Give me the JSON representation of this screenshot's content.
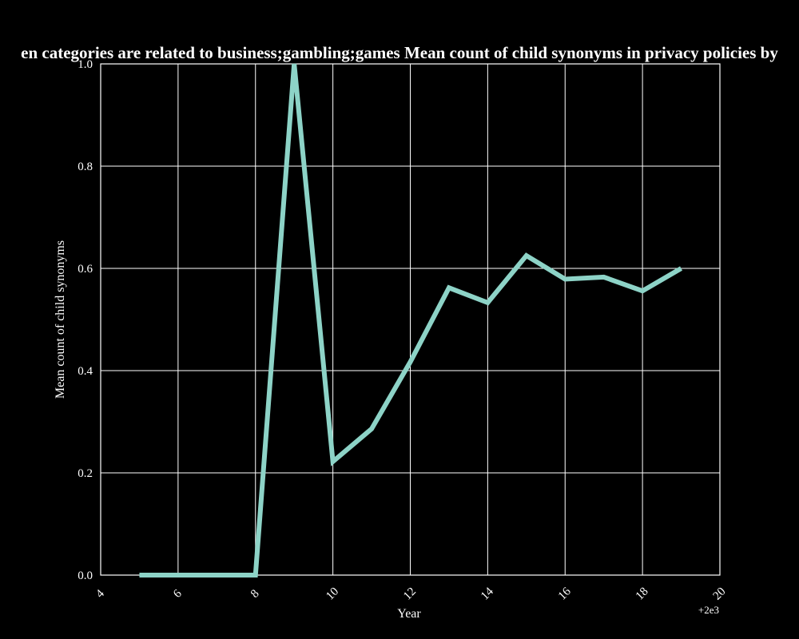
{
  "chart_data": {
    "type": "line",
    "title": "en categories are related to business;gambling;games Mean count of child synonyms in privacy policies by",
    "xlabel": "Year",
    "ylabel": "Mean count of child synonyms",
    "x_offset_label": "+2e3",
    "xlim": [
      4,
      20
    ],
    "ylim": [
      0,
      1
    ],
    "x_ticks": [
      4,
      6,
      8,
      10,
      12,
      14,
      16,
      18,
      20
    ],
    "y_ticks": [
      0.0,
      0.2,
      0.4,
      0.6,
      0.8,
      1.0
    ],
    "x_tick_labels": [
      "4",
      "6",
      "8",
      "10",
      "12",
      "14",
      "16",
      "18",
      "20"
    ],
    "y_tick_labels": [
      "0.0",
      "0.2",
      "0.4",
      "0.6",
      "0.8",
      "1.0"
    ],
    "grid": true,
    "series": [
      {
        "color": "#8dd3c7",
        "x": [
          5,
          6,
          7,
          8,
          9,
          10,
          11,
          12,
          13,
          14,
          15,
          16,
          17,
          18,
          19
        ],
        "y": [
          0.0,
          0.0,
          0.0,
          0.0,
          1.0,
          0.222,
          0.286,
          0.417,
          0.562,
          0.533,
          0.625,
          0.579,
          0.583,
          0.556,
          0.6
        ]
      }
    ]
  },
  "colors": {
    "background": "#000000",
    "axes": "#ffffff",
    "grid": "#ffffff",
    "text": "#ffffff"
  }
}
